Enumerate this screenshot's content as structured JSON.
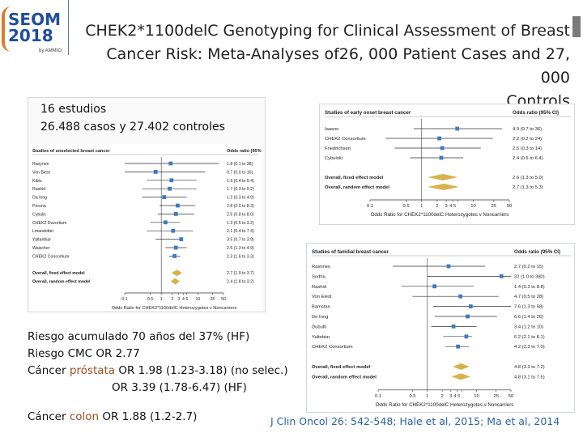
{
  "logo": {
    "name": "SEOM",
    "year": "2018",
    "sub": "by AMMIO"
  },
  "title": {
    "lines": [
      "CHEK2*1100delC Genotyping for Clinical Assessment of Breast",
      "Cancer Risk: Meta-Analyses of26, 000 Patient Cases and 27, 000",
      "Controls"
    ]
  },
  "studies_note": {
    "line1": "16 estudios",
    "line2": "26.488 casos y 27.402 controles"
  },
  "notes": {
    "line1": "Riesgo acumulado 70 años del 37% (HF)",
    "line2": "Riesgo CMC OR 2.77",
    "line3_pre": "Cáncer ",
    "line3_hl": "próstata",
    "line3_post": " OR 1.98 (1.23-3.18) (no selec.)",
    "line4": "OR 3.39 (1.78-6.47) (HF)",
    "colon_pre": "Cáncer ",
    "colon_hl": "colon",
    "colon_post": " OR 1.88 (1.2-2.7)"
  },
  "citation": "J Clin Oncol 26: 542-548; Hale et al, 2015; Ma et al, 2014",
  "colors": {
    "accent_text": "#9c4f23",
    "citation": "#2b63a8",
    "marker": "#3f7bbf",
    "diamond": "#d8b24a"
  },
  "chart_data": [
    {
      "type": "forest",
      "header_left": "Studies of unselected breast cancer",
      "header_right": "Odds ratio (95% CI)",
      "xlabel": "Odds Ratio for CHEK2*1100delC Heterozygotes v Noncarriers",
      "xscale": "log",
      "xlim": [
        0.1,
        50
      ],
      "ticks": [
        0.1,
        0.5,
        1,
        2,
        3,
        4,
        5,
        10,
        25,
        50
      ],
      "tick_labels": [
        "0.1",
        "0.5",
        "1",
        "2",
        "3",
        "4",
        "5",
        "10",
        "25",
        "50"
      ],
      "rows": [
        {
          "label": "Rasynen",
          "or": 1.8,
          "lo": 0.1,
          "hi": 38,
          "ci": "1.8 (0.1 to 38)"
        },
        {
          "label": "Von Biest",
          "or": 0.7,
          "lo": 0.03,
          "hi": 16,
          "ci": "0.7 (0.0 to 16)"
        },
        {
          "label": "Kiblu",
          "or": 1.9,
          "lo": 0.4,
          "hi": 9.4,
          "ci": "1.9 (0.4 to 9.4)"
        },
        {
          "label": "Rashid",
          "or": 1.7,
          "lo": 0.3,
          "hi": 9.2,
          "ci": "1.7 (0.3 to 9.2)"
        },
        {
          "label": "Da Inng",
          "or": 1.2,
          "lo": 0.3,
          "hi": 4.9,
          "ci": "1.2 (0.3 to 4.9)"
        },
        {
          "label": "Perona",
          "or": 2.8,
          "lo": 0.9,
          "hi": 8.3,
          "ci": "2.8 (0.9 to 8.3)"
        },
        {
          "label": "Cybulic",
          "or": 2.5,
          "lo": 0.8,
          "hi": 8.0,
          "ci": "2.5 (0.8 to 8.0)"
        },
        {
          "label": "CHEK2 Duzortium",
          "or": 1.3,
          "lo": 0.5,
          "hi": 3.2,
          "ci": "1.3 (0.5 to 3.2)"
        },
        {
          "label": "Lmandotter",
          "or": 2.1,
          "lo": 0.4,
          "hi": 7.4,
          "ci": "2.1 (0.4 to 7.4)"
        },
        {
          "label": "Yaltaebiar",
          "or": 3.5,
          "lo": 0.7,
          "hi": 3.9,
          "ci": "3.5 (0.7 to 3.9)"
        },
        {
          "label": "Waischer",
          "or": 2.5,
          "lo": 1.3,
          "hi": 4.9,
          "ci": "2.5 (1.3 to 4.9)"
        },
        {
          "label": "CHEK2 Consortium",
          "or": 2.3,
          "lo": 1.6,
          "hi": 3.3,
          "ci": "2.3 (1.6 to 3.3)"
        }
      ],
      "summaries": [
        {
          "label": "Overall, fixed effect model",
          "or": 2.7,
          "lo": 1.9,
          "hi": 3.7,
          "ci": "2.7 (1.9 to 3.7)"
        },
        {
          "label": "Overall, random effect model",
          "or": 2.4,
          "lo": 1.8,
          "hi": 3.2,
          "ci": "2.4 (1.8 to 3.2)"
        }
      ]
    },
    {
      "type": "forest",
      "header_left": "Studies of early onset breast cancer",
      "header_right": "Odds ratio (95% CI)",
      "xlabel": "Odds Ratio for CHEK2*1100delC Heterozygotes v Noncarriers",
      "xscale": "log",
      "xlim": [
        0.1,
        50
      ],
      "ticks": [
        0.1,
        0.5,
        1,
        2,
        3,
        4,
        5,
        10,
        25,
        50
      ],
      "tick_labels": [
        "0.1",
        "0.5",
        "1",
        "2",
        "3",
        "4 5",
        "",
        "10",
        "25",
        "50"
      ],
      "rows": [
        {
          "label": "Iaasno",
          "or": 4.9,
          "lo": 0.7,
          "hi": 36,
          "ci": "4.9 (0.7 to 36)"
        },
        {
          "label": "CHEK2 Consortium",
          "or": 2.2,
          "lo": 0.2,
          "hi": 24,
          "ci": "2.2 (0.2 to 24)"
        },
        {
          "label": "Friedrichsen",
          "or": 2.5,
          "lo": 0.3,
          "hi": 14,
          "ci": "2.5 (0.3 to 14)"
        },
        {
          "label": "Cybulski",
          "or": 2.4,
          "lo": 0.6,
          "hi": 6.4,
          "ci": "2.4 (0.6 to 6.4)"
        }
      ],
      "summaries": [
        {
          "label": "Overall, fixed effect model",
          "or": 2.6,
          "lo": 1.3,
          "hi": 5.0,
          "ci": "2.6 (1.3 to 5.0)"
        },
        {
          "label": "Overall, random effect model",
          "or": 2.7,
          "lo": 1.3,
          "hi": 5.3,
          "ci": "2.7 (1.3 to 5.3)"
        }
      ]
    },
    {
      "type": "forest",
      "header_left": "Studies of familial breast cancer",
      "header_right": "Odds ratio (95% CI)",
      "xlabel": "Odds Ratio for CHEK2*1100delC Heterozygotes v Noncarriers",
      "xscale": "log",
      "xlim": [
        0.1,
        50
      ],
      "ticks": [
        0.1,
        0.5,
        1,
        2,
        3,
        4,
        5,
        10,
        25,
        50
      ],
      "tick_labels": [
        "0.1",
        "0.5",
        "1",
        "2",
        "3",
        "4 5",
        "",
        "10",
        "25",
        "50"
      ],
      "rows": [
        {
          "label": "Rasnnen",
          "or": 2.7,
          "lo": 0.2,
          "hi": 15,
          "ci": "2.7 (0.2 to 15)"
        },
        {
          "label": "Sodha",
          "or": 32,
          "lo": 1.0,
          "hi": 50,
          "ci": "32 (1.0 to 380)"
        },
        {
          "label": "Rashid",
          "or": 1.4,
          "lo": 0.3,
          "hi": 8.8,
          "ci": "1.4 (0.3 to 8.8)"
        },
        {
          "label": "Von Eiest",
          "or": 4.7,
          "lo": 0.5,
          "hi": 28,
          "ci": "4.7 (0.5 to 28)"
        },
        {
          "label": "Bamstan",
          "or": 7.6,
          "lo": 1.3,
          "hi": 58,
          "ci": "7.6 (1.3 to 58)"
        },
        {
          "label": "Do Inng",
          "or": 6.6,
          "lo": 1.4,
          "hi": 26,
          "ci": "6.6 (1.4 to 26)"
        },
        {
          "label": "Dubulti",
          "or": 3.4,
          "lo": 1.2,
          "hi": 10,
          "ci": "3.4 (1.2 to 10)"
        },
        {
          "label": "Yaltebiar",
          "or": 6.2,
          "lo": 2.1,
          "hi": 8.1,
          "ci": "6.2 (2.1 to 8.1)"
        },
        {
          "label": "CHEK2 Consortium",
          "or": 4.2,
          "lo": 2.3,
          "hi": 7.0,
          "ci": "4.2 (2.3 to 7.0)"
        }
      ],
      "summaries": [
        {
          "label": "Overall, fixed effect model",
          "or": 4.8,
          "lo": 3.3,
          "hi": 7.2,
          "ci": "4.8 (3.3 to 7.2)"
        },
        {
          "label": "Overall, random effect model",
          "or": 4.8,
          "lo": 3.1,
          "hi": 7.5,
          "ci": "4.8 (3.1 to 7.5)"
        }
      ]
    }
  ]
}
